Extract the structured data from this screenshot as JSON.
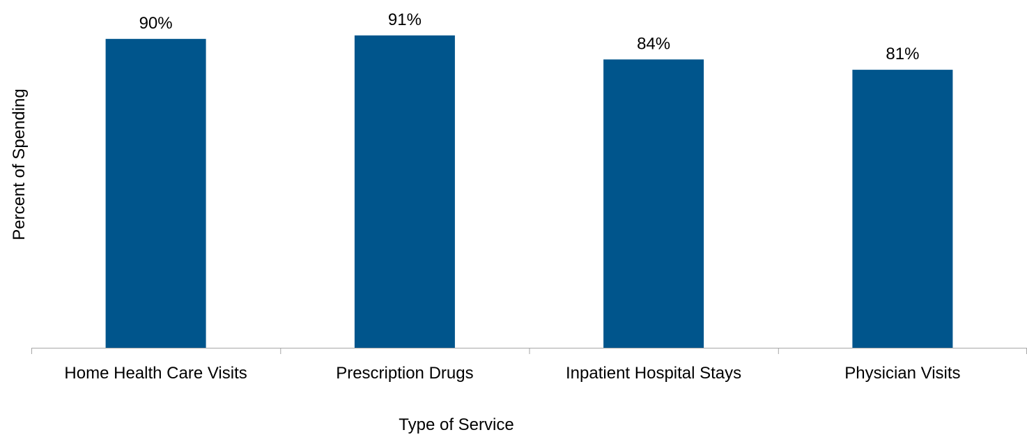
{
  "chart_data": {
    "type": "bar",
    "categories": [
      "Home Health Care Visits",
      "Prescription Drugs",
      "Inpatient Hospital Stays",
      "Physician Visits"
    ],
    "values": [
      90,
      91,
      84,
      81
    ],
    "data_labels": [
      "90%",
      "91%",
      "84%",
      "81%"
    ],
    "xlabel": "Type of Service",
    "ylabel": "Percent of Spending",
    "ylim": [
      0,
      100
    ],
    "grid": false,
    "legend": "none",
    "colors": {
      "bar": "#00558C",
      "axis": "#A6A6A6"
    }
  }
}
